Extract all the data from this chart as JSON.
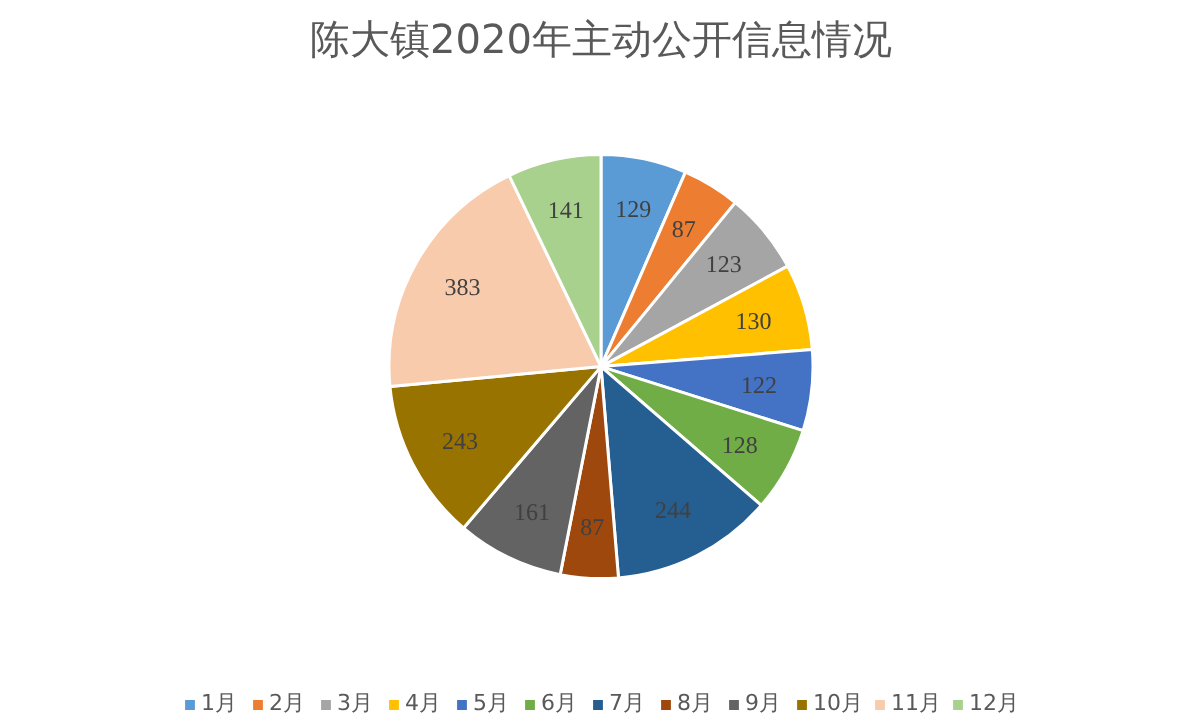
{
  "chart_data": {
    "type": "pie",
    "title": "陈大镇2020年主动公开信息情况",
    "categories": [
      "1月",
      "2月",
      "3月",
      "4月",
      "5月",
      "6月",
      "7月",
      "8月",
      "9月",
      "10月",
      "11月",
      "12月"
    ],
    "values": [
      129,
      87,
      123,
      130,
      122,
      128,
      244,
      87,
      161,
      243,
      383,
      141
    ],
    "colors": [
      "#5b9bd5",
      "#ed7d31",
      "#a5a5a5",
      "#ffc000",
      "#4472c4",
      "#70ad47",
      "#255e91",
      "#9e480e",
      "#636363",
      "#997300",
      "#f8cbad",
      "#a9d18e"
    ],
    "data_labels": true,
    "legend": "bottom"
  }
}
